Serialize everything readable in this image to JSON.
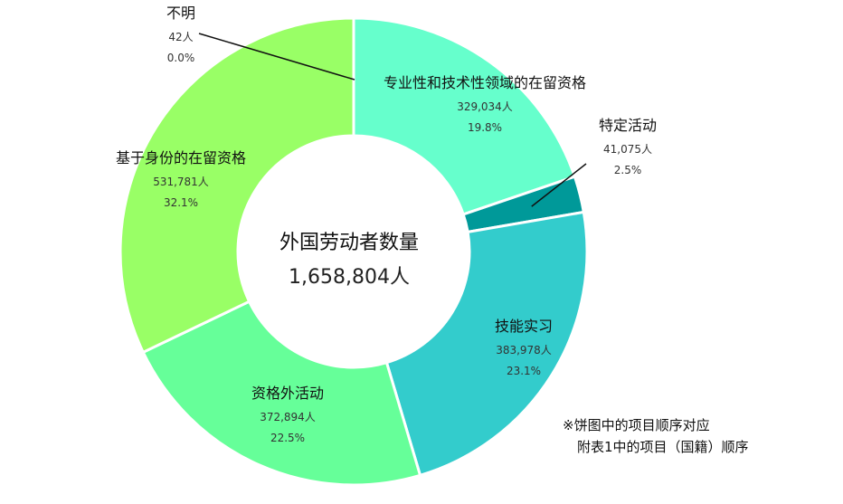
{
  "chart_data": {
    "type": "pie",
    "variant": "donut",
    "center_title": "外国劳动者数量",
    "center_total": "1,658,804人",
    "slices": [
      {
        "name": "专业性和技术性领域的在留资格",
        "count": "329,034人",
        "value": 19.8,
        "color": "#66ffcc"
      },
      {
        "name": "特定活动",
        "count": "41,075人",
        "value": 2.5,
        "color": "#009999"
      },
      {
        "name": "技能实习",
        "count": "383,978人",
        "value": 23.1,
        "color": "#33cccc"
      },
      {
        "name": "资格外活动",
        "count": "372,894人",
        "value": 22.5,
        "color": "#66ff99"
      },
      {
        "name": "基于身份的在留资格",
        "count": "531,781人",
        "value": 32.1,
        "color": "#99ff66"
      },
      {
        "name": "不明",
        "count": "42人",
        "value": 0.0,
        "color": "#cccccc"
      }
    ],
    "value_labels": [
      "19.8%",
      "2.5%",
      "23.1%",
      "22.5%",
      "32.1%",
      "0.0%"
    ]
  },
  "note": {
    "line1": "※饼图中的项目顺序对应",
    "line2": "附表1中的项目（国籍）顺序"
  }
}
